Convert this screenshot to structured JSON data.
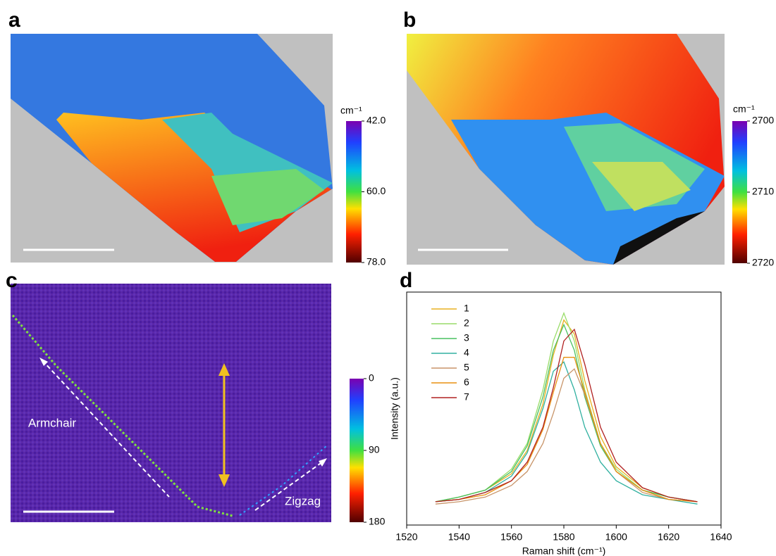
{
  "chart_data": [
    {
      "type": "map",
      "panel": "a",
      "colorbar_title": "cm⁻¹",
      "clim": [
        42,
        78
      ],
      "cticks": [
        {
          "value": 42,
          "label": "42.0"
        },
        {
          "value": 60,
          "label": "60.0"
        },
        {
          "value": 78,
          "label": "78.0"
        }
      ]
    },
    {
      "type": "map",
      "panel": "b",
      "colorbar_title": "cm⁻¹",
      "clim": [
        2700,
        2720
      ],
      "cticks": [
        2700,
        2710,
        2720
      ]
    },
    {
      "type": "map",
      "panel": "c",
      "clim": [
        0,
        180
      ],
      "cticks": [
        0,
        90,
        180
      ],
      "annotations": [
        "Armchair",
        "Zigzag"
      ]
    },
    {
      "type": "line",
      "panel": "d",
      "xlabel": "Raman shift (cm⁻¹)",
      "ylabel": "Intensity (a.u.)",
      "xlim": [
        1520,
        1640
      ],
      "xticks": [
        1520,
        1540,
        1560,
        1580,
        1600,
        1620,
        1640
      ],
      "ylim": [
        0,
        1
      ],
      "x": [
        1531,
        1540,
        1550,
        1560,
        1566,
        1572,
        1576,
        1580,
        1584,
        1588,
        1594,
        1600,
        1610,
        1620,
        1631
      ],
      "series": [
        {
          "name": "1",
          "color": "#e8b020",
          "values": [
            0.1,
            0.12,
            0.15,
            0.22,
            0.32,
            0.52,
            0.73,
            0.88,
            0.82,
            0.62,
            0.38,
            0.25,
            0.16,
            0.12,
            0.1
          ]
        },
        {
          "name": "2",
          "color": "#98dc68",
          "values": [
            0.1,
            0.12,
            0.15,
            0.24,
            0.35,
            0.58,
            0.79,
            0.91,
            0.79,
            0.58,
            0.35,
            0.24,
            0.15,
            0.12,
            0.1
          ]
        },
        {
          "name": "3",
          "color": "#48c060",
          "values": [
            0.1,
            0.12,
            0.15,
            0.23,
            0.34,
            0.55,
            0.75,
            0.86,
            0.75,
            0.55,
            0.34,
            0.23,
            0.15,
            0.12,
            0.1
          ]
        },
        {
          "name": "4",
          "color": "#30b0a0",
          "values": [
            0.1,
            0.11,
            0.14,
            0.21,
            0.31,
            0.5,
            0.66,
            0.7,
            0.58,
            0.42,
            0.27,
            0.19,
            0.13,
            0.11,
            0.09
          ]
        },
        {
          "name": "5",
          "color": "#c89468",
          "values": [
            0.09,
            0.1,
            0.12,
            0.17,
            0.23,
            0.35,
            0.48,
            0.63,
            0.67,
            0.56,
            0.35,
            0.23,
            0.14,
            0.11,
            0.1
          ]
        },
        {
          "name": "6",
          "color": "#e89010",
          "values": [
            0.1,
            0.11,
            0.13,
            0.19,
            0.26,
            0.41,
            0.57,
            0.72,
            0.72,
            0.57,
            0.35,
            0.23,
            0.15,
            0.11,
            0.1
          ]
        },
        {
          "name": "7",
          "color": "#b02020",
          "values": [
            0.1,
            0.11,
            0.14,
            0.19,
            0.27,
            0.42,
            0.59,
            0.79,
            0.84,
            0.69,
            0.42,
            0.27,
            0.16,
            0.12,
            0.1
          ]
        }
      ]
    }
  ]
}
